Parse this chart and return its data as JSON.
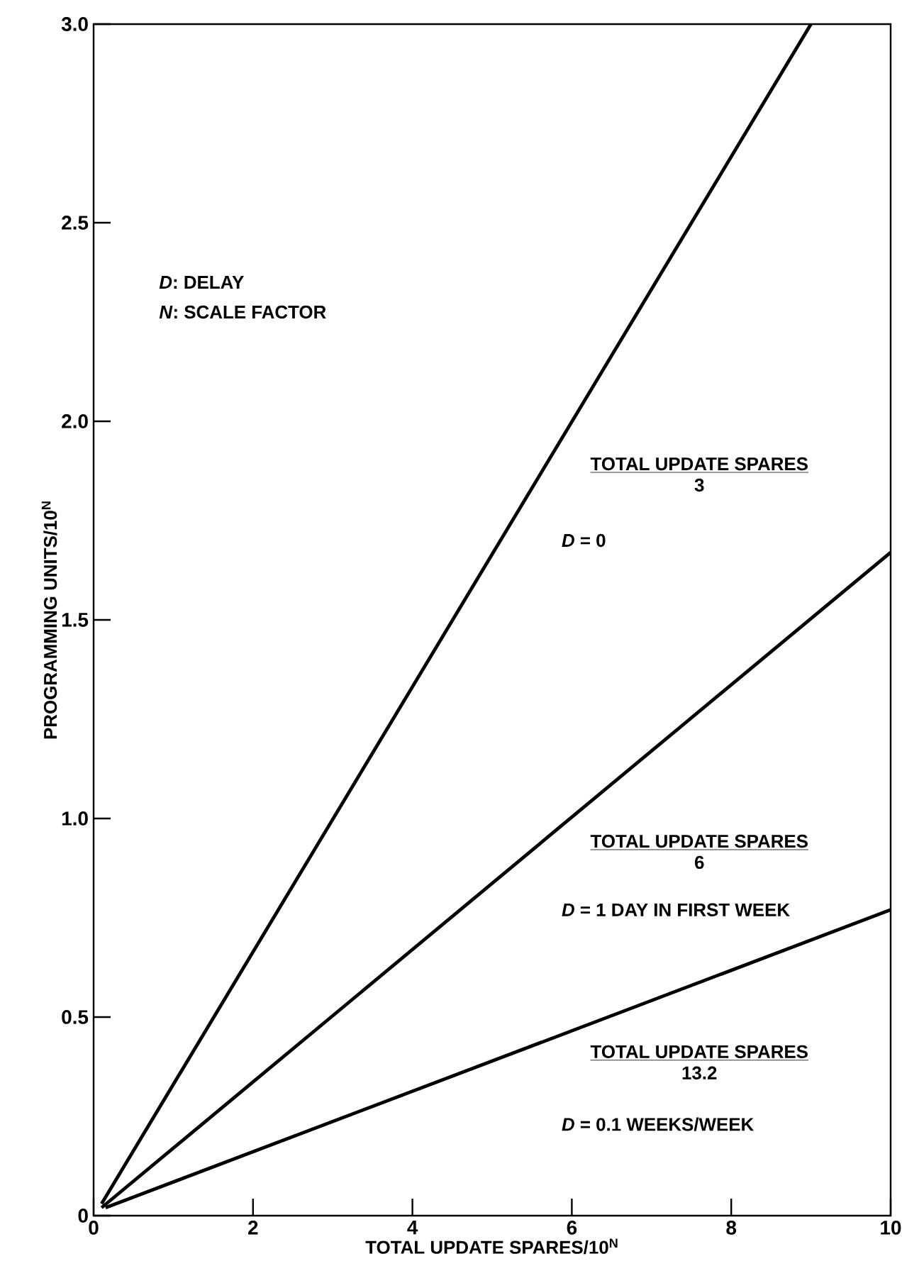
{
  "chart_data": {
    "type": "line",
    "xlabel": "TOTAL UPDATE SPARES/10$^{N}$",
    "ylabel": "PROGRAMMING UNITS/10$^{N}$",
    "series": [
      {
        "color": "#000000",
        "x": [
          0.1,
          9.0
        ],
        "values": [
          0.03,
          3.0
        ]
      },
      {
        "color": "#000000",
        "x": [
          0.1,
          10.0
        ],
        "values": [
          0.02,
          1.67
        ]
      },
      {
        "color": "#000000",
        "x": [
          0.15,
          10.0
        ],
        "values": [
          0.02,
          0.77
        ]
      }
    ],
    "xlim": [
      0,
      10
    ],
    "ylim": [
      0,
      3.0
    ],
    "xticks": [
      0,
      2,
      4,
      6,
      8,
      10
    ],
    "yticks": [
      0,
      {
        "value": 0.5,
        "label": "0.5"
      },
      {
        "value": 1,
        "label": "1.0"
      },
      {
        "value": 1.5,
        "label": "1.5"
      },
      {
        "value": 2,
        "label": "2.0"
      },
      {
        "value": 2.5,
        "label": "2.5"
      },
      {
        "value": 3,
        "label": "3.0"
      }
    ],
    "marker": "none",
    "line_style": "solid",
    "annotations": [
      "*D*: DELAY",
      "*N*: SCALE FACTOR",
      "TOTAL UPDATE SPARES",
      "3",
      "*D* = 0",
      "TOTAL UPDATE SPARES",
      "6",
      "*D* = 1 DAY IN FIRST WEEK",
      "TOTAL UPDATE SPARES",
      "13.2",
      "*D* = 0.1 WEEKS/WEEK"
    ]
  }
}
